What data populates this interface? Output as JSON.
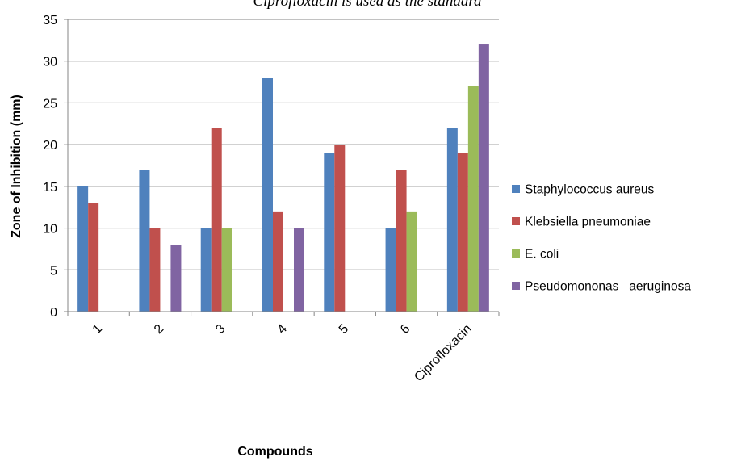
{
  "chart_data": {
    "type": "bar",
    "title": "Ciprofloxacin is used as the standard",
    "xlabel": "Compounds",
    "ylabel": "Zone of Inhibition (mm)",
    "categories": [
      "1",
      "2",
      "3",
      "4",
      "5",
      "6",
      "Ciprofloxacin"
    ],
    "ylim": [
      0,
      35
    ],
    "yticks": [
      0,
      5,
      10,
      15,
      20,
      25,
      30,
      35
    ],
    "grid": true,
    "legend_position": "right",
    "series": [
      {
        "name": "Staphylococcus aureus",
        "color": "#4F81BD",
        "values": [
          15,
          17,
          10,
          28,
          19,
          10,
          22
        ]
      },
      {
        "name": "Klebsiella pneumoniae",
        "color": "#C0504D",
        "values": [
          13,
          10,
          22,
          12,
          20,
          17,
          19
        ]
      },
      {
        "name": "E. coli",
        "color": "#9BBB59",
        "values": [
          0,
          0,
          10,
          0,
          0,
          12,
          27
        ]
      },
      {
        "name": "Pseudomononas   aeruginosa",
        "color": "#8064A2",
        "values": [
          0,
          8,
          0,
          10,
          0,
          0,
          32
        ]
      }
    ]
  }
}
